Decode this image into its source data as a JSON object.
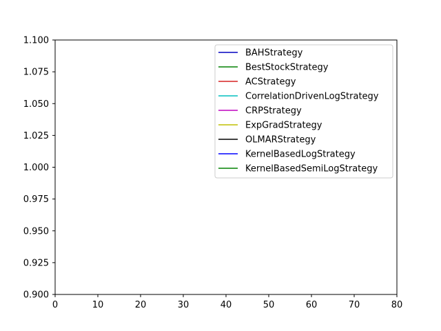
{
  "chart_data": {
    "type": "line",
    "xlim": [
      0,
      80
    ],
    "ylim": [
      0.9,
      1.1
    ],
    "xticks": [
      0,
      10,
      20,
      30,
      40,
      50,
      60,
      70,
      80
    ],
    "yticks": [
      0.9,
      0.925,
      0.95,
      0.975,
      1.0,
      1.025,
      1.05,
      1.075,
      1.1
    ],
    "xtick_labels": [
      "0",
      "10",
      "20",
      "30",
      "40",
      "50",
      "60",
      "70",
      "80"
    ],
    "ytick_labels": [
      "0.900",
      "0.925",
      "0.950",
      "0.975",
      "1.000",
      "1.025",
      "1.050",
      "1.075",
      "1.100"
    ],
    "grid": false,
    "legend_position": "top-right",
    "series": [
      {
        "name": "BAHStrategy",
        "color": "#0000bf",
        "x": [],
        "y": []
      },
      {
        "name": "BestStockStrategy",
        "color": "#008000",
        "x": [],
        "y": []
      },
      {
        "name": "ACStrategy",
        "color": "#d62020",
        "x": [],
        "y": []
      },
      {
        "name": "CorrelationDrivenLogStrategy",
        "color": "#00bfbf",
        "x": [],
        "y": []
      },
      {
        "name": "CRPStrategy",
        "color": "#bf00bf",
        "x": [],
        "y": []
      },
      {
        "name": "ExpGradStrategy",
        "color": "#bfbf00",
        "x": [],
        "y": []
      },
      {
        "name": "OLMARStrategy",
        "color": "#000000",
        "x": [],
        "y": []
      },
      {
        "name": "KernelBasedLogStrategy",
        "color": "#0000ff",
        "x": [],
        "y": []
      },
      {
        "name": "KernelBasedSemiLogStrategy",
        "color": "#008000",
        "x": [],
        "y": []
      }
    ]
  }
}
